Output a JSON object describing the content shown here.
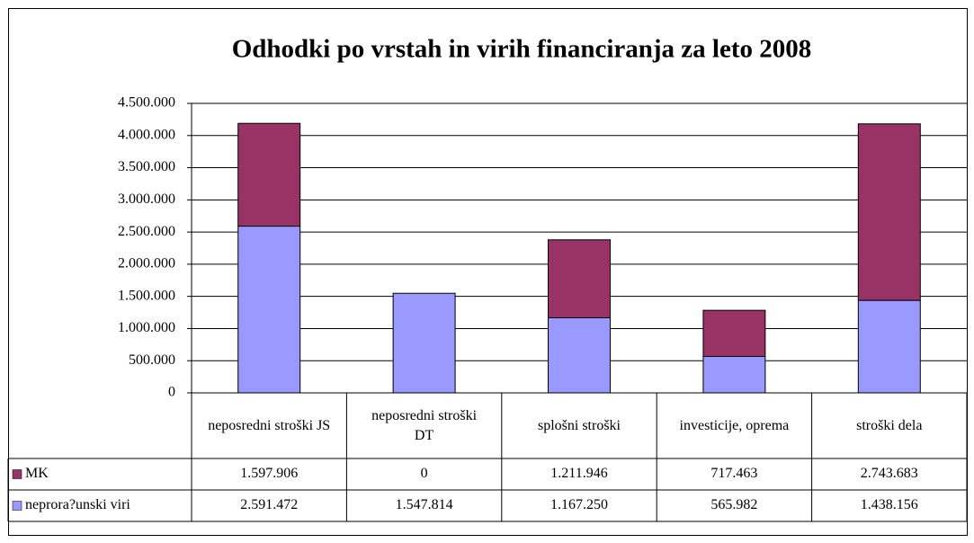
{
  "chart_data": {
    "type": "stacked_bar",
    "title": "Odhodki po vrstah in virih financiranja za leto 2008",
    "categories": [
      "neposredni stroški JS",
      "neposredni stroški DT",
      "splošni stroški",
      "investicije, oprema",
      "stroški dela"
    ],
    "series": [
      {
        "name": "MK",
        "color": "#993366",
        "values": [
          1597906,
          0,
          1211946,
          717463,
          2743683
        ],
        "value_labels": [
          "1.597.906",
          "0",
          "1.211.946",
          "717.463",
          "2.743.683"
        ]
      },
      {
        "name": "neprora?unski viri",
        "color": "#9999ff",
        "values": [
          2591472,
          1547814,
          1167250,
          565982,
          1438156
        ],
        "value_labels": [
          "2.591.472",
          "1.547.814",
          "1.167.250",
          "565.982",
          "1.438.156"
        ]
      }
    ],
    "ylim": [
      0,
      4500000
    ],
    "yticks": [
      0,
      {
        "value": 500000,
        "label": "500.000"
      },
      {
        "value": 1000000,
        "label": "1.000.000"
      },
      {
        "value": 1500000,
        "label": "1.500.000"
      },
      {
        "value": 2000000,
        "label": "2.000.000"
      },
      {
        "value": 2500000,
        "label": "2.500.000"
      },
      {
        "value": 3000000,
        "label": "3.000.000"
      },
      {
        "value": 3500000,
        "label": "3.500.000"
      },
      {
        "value": 4000000,
        "label": "4.000.000"
      },
      {
        "value": 4500000,
        "label": "4.500.000"
      }
    ],
    "grid": true
  }
}
